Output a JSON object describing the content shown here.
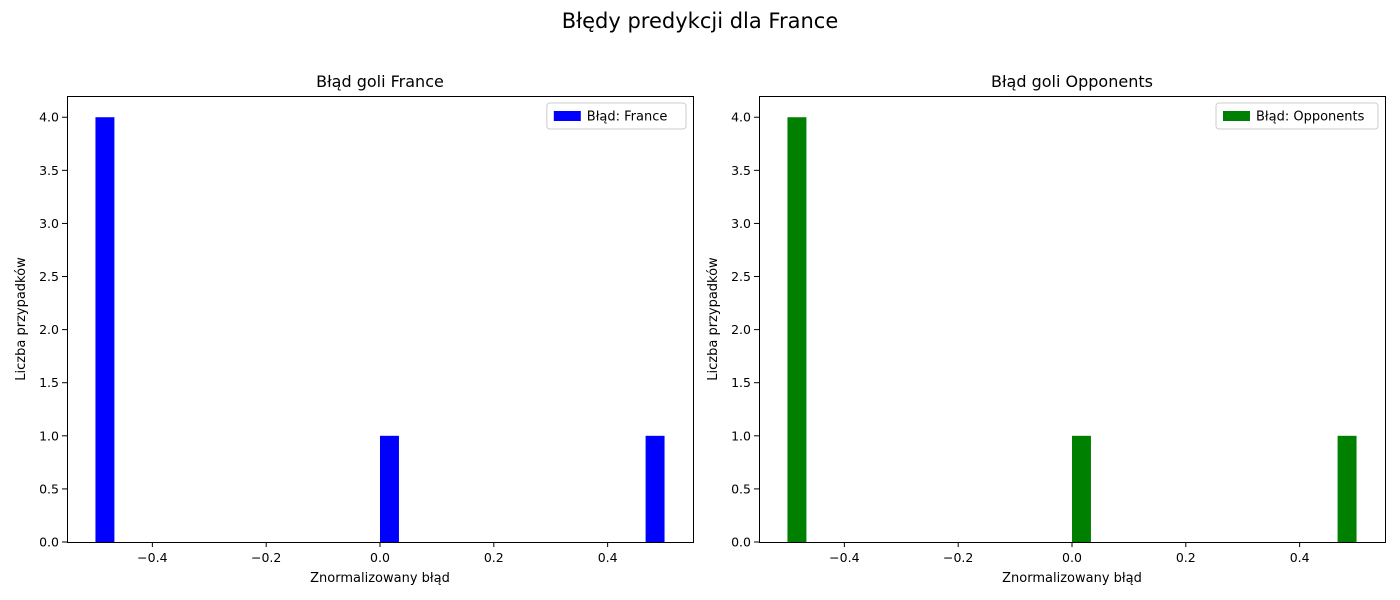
{
  "figure": {
    "suptitle": "Błędy predykcji dla France"
  },
  "chart_data": [
    {
      "type": "bar",
      "title": "Błąd goli France",
      "xlabel": "Znormalizowany błąd",
      "ylabel": "Liczba przypadków",
      "legend": "Błąd: France",
      "legend_position": "top-right",
      "color": "#0000ff",
      "bin_width": 0.0333,
      "bars": [
        {
          "x_start": -0.5,
          "count": 4
        },
        {
          "x_start": 0.0,
          "count": 1
        },
        {
          "x_start": 0.4667,
          "count": 1
        }
      ],
      "xlim": [
        -0.55,
        0.55
      ],
      "ylim": [
        0,
        4.2
      ],
      "xticks": [
        -0.4,
        -0.2,
        0.0,
        0.2,
        0.4
      ],
      "xtick_labels": [
        "−0.4",
        "−0.2",
        "0.0",
        "0.2",
        "0.4"
      ],
      "yticks": [
        0.0,
        0.5,
        1.0,
        1.5,
        2.0,
        2.5,
        3.0,
        3.5,
        4.0
      ],
      "ytick_labels": [
        "0.0",
        "0.5",
        "1.0",
        "1.5",
        "2.0",
        "2.5",
        "3.0",
        "3.5",
        "4.0"
      ],
      "grid": false
    },
    {
      "type": "bar",
      "title": "Błąd goli Opponents",
      "xlabel": "Znormalizowany błąd",
      "ylabel": "Liczba przypadków",
      "legend": "Błąd: Opponents",
      "legend_position": "top-right",
      "color": "#008000",
      "bin_width": 0.0333,
      "bars": [
        {
          "x_start": -0.5,
          "count": 4
        },
        {
          "x_start": 0.0,
          "count": 1
        },
        {
          "x_start": 0.4667,
          "count": 1
        }
      ],
      "xlim": [
        -0.55,
        0.55
      ],
      "ylim": [
        0,
        4.2
      ],
      "xticks": [
        -0.4,
        -0.2,
        0.0,
        0.2,
        0.4
      ],
      "xtick_labels": [
        "−0.4",
        "−0.2",
        "0.0",
        "0.2",
        "0.4"
      ],
      "yticks": [
        0.0,
        0.5,
        1.0,
        1.5,
        2.0,
        2.5,
        3.0,
        3.5,
        4.0
      ],
      "ytick_labels": [
        "0.0",
        "0.5",
        "1.0",
        "1.5",
        "2.0",
        "2.5",
        "3.0",
        "3.5",
        "4.0"
      ],
      "grid": false
    }
  ]
}
